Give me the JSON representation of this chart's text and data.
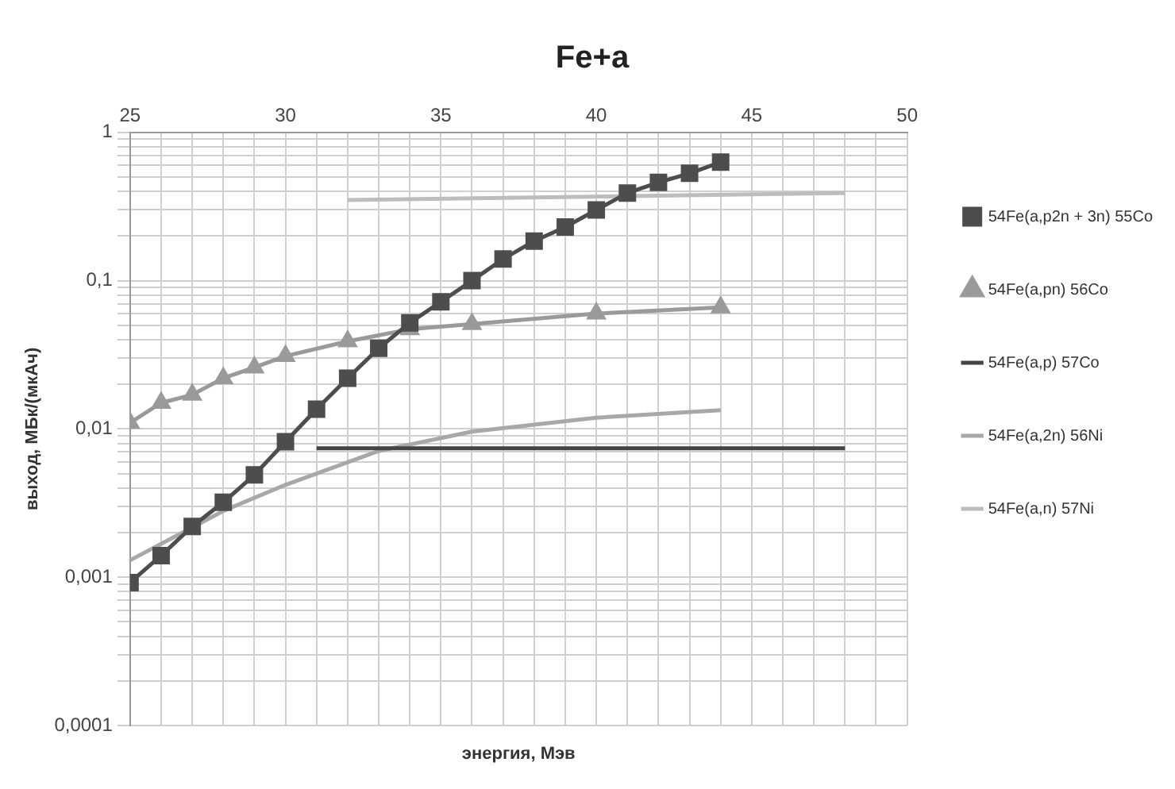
{
  "chart_data": {
    "type": "line",
    "title": "Fe+a",
    "xlabel": "энергия, Мэв",
    "ylabel": "выход, МБк/(мкАч)",
    "log": "y",
    "grid": true,
    "legend": "right",
    "xlim": [
      25,
      50
    ],
    "xticks": [
      25,
      {
        "value": 26,
        "label": null
      },
      {
        "value": 27,
        "label": null
      },
      {
        "value": 28,
        "label": null
      },
      {
        "value": 29,
        "label": null
      },
      30,
      {
        "value": 31,
        "label": null
      },
      {
        "value": 32,
        "label": null
      },
      {
        "value": 33,
        "label": null
      },
      {
        "value": 34,
        "label": null
      },
      35,
      {
        "value": 36,
        "label": null
      },
      {
        "value": 37,
        "label": null
      },
      {
        "value": 38,
        "label": null
      },
      {
        "value": 39,
        "label": null
      },
      40,
      {
        "value": 41,
        "label": null
      },
      {
        "value": 42,
        "label": null
      },
      {
        "value": 43,
        "label": null
      },
      {
        "value": 44,
        "label": null
      },
      45,
      {
        "value": 46,
        "label": null
      },
      {
        "value": 47,
        "label": null
      },
      {
        "value": 48,
        "label": null
      },
      {
        "value": 49,
        "label": null
      },
      50
    ],
    "ylim": [
      0.0001,
      1
    ],
    "yticks": [
      {
        "value": 0.0001,
        "label": "0,0001"
      },
      {
        "value": 0.0002,
        "label": null
      },
      {
        "value": 0.0003,
        "label": null
      },
      {
        "value": 0.0004,
        "label": null
      },
      {
        "value": 0.0005,
        "label": null
      },
      {
        "value": 0.0006,
        "label": null
      },
      {
        "value": 0.0007,
        "label": null
      },
      {
        "value": 0.0008,
        "label": null
      },
      {
        "value": 0.0009,
        "label": null
      },
      {
        "value": 0.001,
        "label": "0,001"
      },
      {
        "value": 0.002,
        "label": null
      },
      {
        "value": 0.003,
        "label": null
      },
      {
        "value": 0.004,
        "label": null
      },
      {
        "value": 0.005,
        "label": null
      },
      {
        "value": 0.006,
        "label": null
      },
      {
        "value": 0.007,
        "label": null
      },
      {
        "value": 0.008,
        "label": null
      },
      {
        "value": 0.009,
        "label": null
      },
      {
        "value": 0.01,
        "label": "0,01"
      },
      {
        "value": 0.02,
        "label": null
      },
      {
        "value": 0.03,
        "label": null
      },
      {
        "value": 0.04,
        "label": null
      },
      {
        "value": 0.05,
        "label": null
      },
      {
        "value": 0.06,
        "label": null
      },
      {
        "value": 0.07,
        "label": null
      },
      {
        "value": 0.08,
        "label": null
      },
      {
        "value": 0.09,
        "label": null
      },
      {
        "value": 0.1,
        "label": "0,1"
      },
      {
        "value": 0.2,
        "label": null
      },
      {
        "value": 0.3,
        "label": null
      },
      {
        "value": 0.4,
        "label": null
      },
      {
        "value": 0.5,
        "label": null
      },
      {
        "value": 0.6,
        "label": null
      },
      {
        "value": 0.7,
        "label": null
      },
      {
        "value": 0.8,
        "label": null
      },
      {
        "value": 0.9,
        "label": null
      },
      1
    ],
    "series": [
      {
        "name": "54Fe(a,p2n + 3n) 55Co",
        "color": "#4d4d4d",
        "marker": "square",
        "x": [
          25,
          26,
          27,
          28,
          29,
          30,
          31,
          32,
          33,
          34,
          35,
          36,
          37,
          38,
          39,
          40,
          41,
          42,
          43,
          44
        ],
        "values": [
          0.00092,
          0.0014,
          0.0022,
          0.0032,
          0.0049,
          0.0082,
          0.0136,
          0.022,
          0.035,
          0.052,
          0.072,
          0.1,
          0.14,
          0.185,
          0.23,
          0.3,
          0.39,
          0.46,
          0.53,
          0.63
        ]
      },
      {
        "name": "54Fe(a,pn) 56Co",
        "color": "#9a9a9a",
        "marker": "triangle",
        "x": [
          25,
          26,
          27,
          28,
          29,
          30,
          32,
          34,
          36,
          40,
          44
        ],
        "values": [
          0.011,
          0.015,
          0.017,
          0.022,
          0.026,
          0.031,
          0.039,
          0.047,
          0.051,
          0.06,
          0.066
        ]
      },
      {
        "name": "54Fe(a,p) 57Co",
        "color": "#444444",
        "marker": "none",
        "x": [
          31,
          48
        ],
        "values": [
          0.0074,
          0.0074
        ]
      },
      {
        "name": "54Fe(a,2n) 56Ni",
        "color": "#a8a8a8",
        "marker": "none",
        "x": [
          25,
          28,
          30,
          33,
          36,
          40,
          44
        ],
        "values": [
          0.0013,
          0.0028,
          0.0042,
          0.0071,
          0.0096,
          0.0119,
          0.0134
        ]
      },
      {
        "name": "54Fe(a,n) 57Ni",
        "color": "#bdbdbd",
        "marker": "none",
        "x": [
          32,
          48
        ],
        "values": [
          0.35,
          0.39
        ]
      }
    ]
  }
}
